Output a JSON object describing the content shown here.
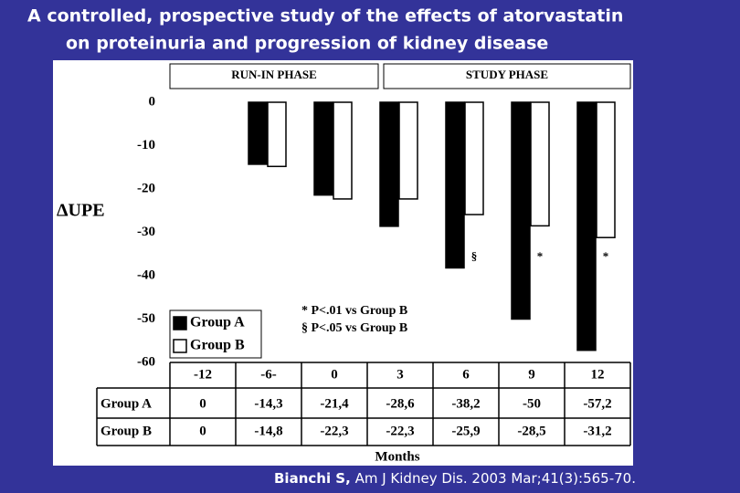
{
  "chart_data": {
    "type": "bar",
    "title": [
      "A controlled, prospective study of the effects of atorvastatin",
      "on proteinuria and progression of kidney disease"
    ],
    "phases": [
      "RUN-IN PHASE",
      "STUDY PHASE"
    ],
    "y_label": "ΔUPE",
    "x_label": "Months",
    "categories": [
      "-12",
      "-6-",
      "0",
      "3",
      "6",
      "9",
      "12"
    ],
    "series": [
      {
        "name": "Group A",
        "color": "#000000",
        "values": [
          0,
          -14.3,
          -21.4,
          -28.6,
          -38.2,
          -50,
          -57.2
        ],
        "value_labels": [
          "0",
          "-14,3",
          "-21,4",
          "-28,6",
          "-38,2",
          "-50",
          "-57,2"
        ]
      },
      {
        "name": "Group B",
        "color": "#ffffff",
        "values": [
          0,
          -14.8,
          -22.3,
          -22.3,
          -25.9,
          -28.5,
          -31.2
        ],
        "value_labels": [
          "0",
          "-14,8",
          "-22,3",
          "-22,3",
          "-25,9",
          "-28,5",
          "-31,2"
        ],
        "bar_notes": [
          null,
          null,
          null,
          null,
          "§",
          "*",
          "*"
        ]
      }
    ],
    "notes": [
      "* P<.01 vs Group B",
      "§ P<.05 vs Group B"
    ],
    "ylim": [
      -60,
      0
    ],
    "yticks": [
      0,
      -10,
      -20,
      -30,
      -40,
      -50,
      -60
    ],
    "legend": "lower left",
    "citation": {
      "author": "Bianchi S,",
      "source": "Am J Kidney Dis. 2003 Mar;41(3):565-70."
    }
  }
}
